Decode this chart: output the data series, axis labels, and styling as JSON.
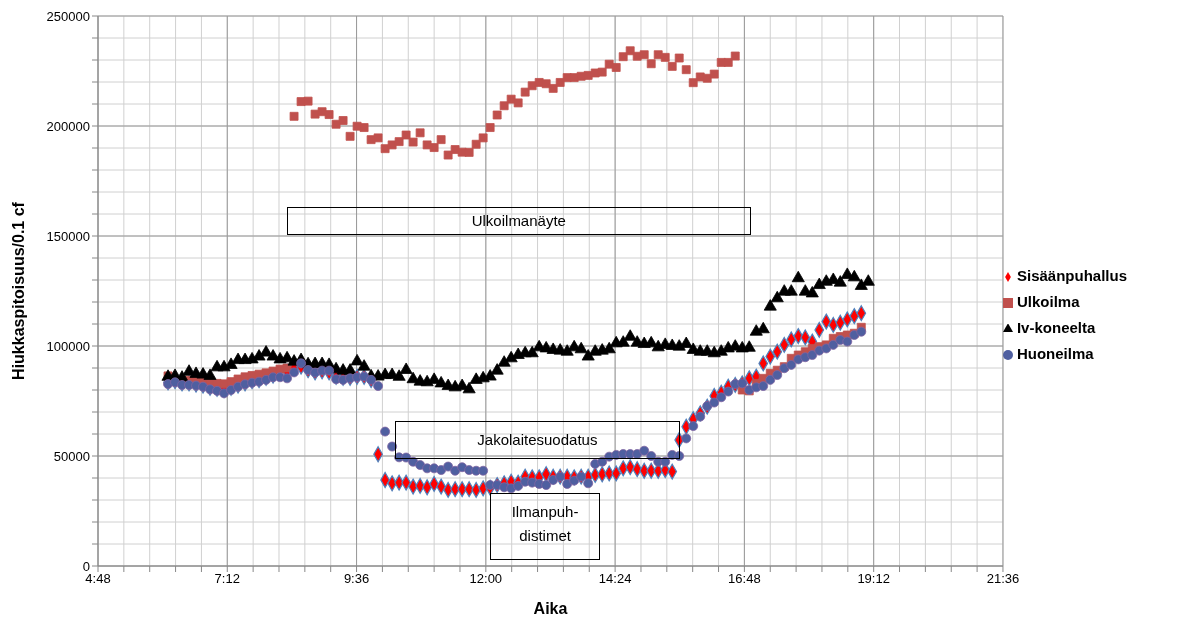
{
  "chart_data": {
    "type": "scatter",
    "xlabel": "Aika",
    "ylabel": "Hiukkaspitoisuus/0.1 cf",
    "xlim": [
      4.8,
      21.6
    ],
    "xticks": [
      {
        "value": 4.8,
        "label": "4:48"
      },
      {
        "value": 5.28,
        "label": null
      },
      {
        "value": 5.76,
        "label": null
      },
      {
        "value": 6.24,
        "label": null
      },
      {
        "value": 6.72,
        "label": null
      },
      {
        "value": 7.2,
        "label": "7:12"
      },
      {
        "value": 7.68,
        "label": null
      },
      {
        "value": 8.16,
        "label": null
      },
      {
        "value": 8.64,
        "label": null
      },
      {
        "value": 9.12,
        "label": null
      },
      {
        "value": 9.6,
        "label": "9:36"
      },
      {
        "value": 10.08,
        "label": null
      },
      {
        "value": 10.56,
        "label": null
      },
      {
        "value": 11.04,
        "label": null
      },
      {
        "value": 11.52,
        "label": null
      },
      {
        "value": 12,
        "label": "12:00"
      },
      {
        "value": 12.48,
        "label": null
      },
      {
        "value": 12.96,
        "label": null
      },
      {
        "value": 13.44,
        "label": null
      },
      {
        "value": 13.92,
        "label": null
      },
      {
        "value": 14.4,
        "label": "14:24"
      },
      {
        "value": 14.88,
        "label": null
      },
      {
        "value": 15.36,
        "label": null
      },
      {
        "value": 15.84,
        "label": null
      },
      {
        "value": 16.32,
        "label": null
      },
      {
        "value": 16.8,
        "label": "16:48"
      },
      {
        "value": 17.28,
        "label": null
      },
      {
        "value": 17.76,
        "label": null
      },
      {
        "value": 18.24,
        "label": null
      },
      {
        "value": 18.72,
        "label": null
      },
      {
        "value": 19.2,
        "label": "19:12"
      },
      {
        "value": 19.68,
        "label": null
      },
      {
        "value": 20.16,
        "label": null
      },
      {
        "value": 20.64,
        "label": null
      },
      {
        "value": 21.12,
        "label": null
      },
      {
        "value": 21.6,
        "label": "21:36"
      }
    ],
    "ylim": [
      0,
      250000
    ],
    "yticks": [
      0,
      {
        "value": 10000,
        "label": null
      },
      {
        "value": 20000,
        "label": null
      },
      {
        "value": 30000,
        "label": null
      },
      {
        "value": 40000,
        "label": null
      },
      50000,
      {
        "value": 60000,
        "label": null
      },
      {
        "value": 70000,
        "label": null
      },
      {
        "value": 80000,
        "label": null
      },
      {
        "value": 90000,
        "label": null
      },
      100000,
      {
        "value": 110000,
        "label": null
      },
      {
        "value": 120000,
        "label": null
      },
      {
        "value": 130000,
        "label": null
      },
      {
        "value": 140000,
        "label": null
      },
      150000,
      {
        "value": 160000,
        "label": null
      },
      {
        "value": 170000,
        "label": null
      },
      {
        "value": 180000,
        "label": null
      },
      {
        "value": 190000,
        "label": null
      },
      200000,
      {
        "value": 210000,
        "label": null
      },
      {
        "value": 220000,
        "label": null
      },
      {
        "value": 230000,
        "label": null
      },
      {
        "value": 240000,
        "label": null
      },
      250000
    ],
    "grid": true,
    "legend": "right",
    "x": [
      6.1,
      6.23,
      6.36,
      6.49,
      6.62,
      6.75,
      6.88,
      7.01,
      7.14,
      7.27,
      7.4,
      7.53,
      7.66,
      7.79,
      7.92,
      8.05,
      8.18,
      8.31,
      8.44,
      8.57,
      8.7,
      8.83,
      8.96,
      9.09,
      9.22,
      9.35,
      9.48,
      9.61,
      9.74,
      9.87,
      10,
      10.13,
      10.26,
      10.39,
      10.52,
      10.65,
      10.78,
      10.91,
      11.04,
      11.17,
      11.3,
      11.43,
      11.56,
      11.69,
      11.82,
      11.95,
      12.08,
      12.21,
      12.34,
      12.47,
      12.6,
      12.73,
      12.86,
      12.99,
      13.12,
      13.25,
      13.38,
      13.51,
      13.64,
      13.77,
      13.9,
      14.03,
      14.16,
      14.29,
      14.42,
      14.55,
      14.68,
      14.81,
      14.94,
      15.07,
      15.2,
      15.33,
      15.46,
      15.59,
      15.72,
      15.85,
      15.98,
      16.11,
      16.24,
      16.37,
      16.5,
      16.63,
      16.76,
      16.89,
      17.02,
      17.15,
      17.28,
      17.41,
      17.54,
      17.67,
      17.8,
      17.93,
      18.06,
      18.19,
      18.32,
      18.45,
      18.58,
      18.71,
      18.84,
      18.97,
      19.1
    ],
    "series": [
      {
        "name": "Sisäänpuhallus",
        "color": "#ff0000",
        "marker": "diamond",
        "values": [
          83500,
          84000,
          83000,
          83000,
          82500,
          82000,
          81000,
          80500,
          80000,
          81000,
          82000,
          83000,
          84000,
          84500,
          85500,
          86500,
          null,
          88500,
          90300,
          90600,
          89000,
          88000,
          88500,
          88000,
          86000,
          85500,
          85500,
          86000,
          86000,
          84500,
          50800,
          39100,
          37600,
          37900,
          37900,
          36100,
          36400,
          35800,
          37300,
          36100,
          34600,
          34900,
          34900,
          34900,
          34600,
          35300,
          35600,
          36800,
          37600,
          38300,
          37900,
          40600,
          40300,
          40300,
          41700,
          40600,
          40600,
          40600,
          40300,
          40600,
          40600,
          41400,
          41700,
          42100,
          42100,
          44400,
          44900,
          44000,
          43300,
          43300,
          43300,
          43600,
          42900,
          57300,
          63300,
          66700,
          69400,
          72400,
          77300,
          78800,
          81500,
          82300,
          83000,
          85300,
          86100,
          92100,
          95200,
          97400,
          100500,
          103000,
          104500,
          103900,
          102000,
          107300,
          111100,
          109600,
          110600,
          112100,
          113600,
          114900,
          null
        ]
      },
      {
        "name": "Ulkoilma",
        "color": "#c0504d",
        "marker": "square",
        "values": [
          86400,
          null,
          null,
          84400,
          84000,
          83600,
          83300,
          83000,
          82800,
          83800,
          85000,
          86000,
          86600,
          87200,
          87800,
          88600,
          89500,
          90000,
          204400,
          211100,
          211300,
          205400,
          206500,
          205200,
          200800,
          202500,
          195300,
          199900,
          199300,
          193800,
          194600,
          189700,
          191400,
          192900,
          195900,
          192700,
          196900,
          191400,
          190200,
          193800,
          186800,
          189300,
          188100,
          188000,
          191700,
          194600,
          199300,
          205000,
          209200,
          212200,
          210500,
          215400,
          218300,
          219800,
          219200,
          217100,
          219800,
          222000,
          222000,
          222600,
          223000,
          224100,
          224500,
          228100,
          226600,
          231500,
          234200,
          231700,
          232400,
          228300,
          232400,
          231200,
          227100,
          230900,
          225600,
          219700,
          222300,
          221700,
          223600,
          228900,
          228900,
          231800,
          80000,
          79600,
          83000,
          85300,
          87600,
          89000,
          90600,
          94400,
          95900,
          97400,
          98900,
          99700,
          100500,
          103500,
          104300,
          105000,
          105800,
          108500,
          null
        ]
      },
      {
        "name": "Iv-koneelta",
        "color": "#000000",
        "marker": "triangle",
        "values": [
          86000,
          86400,
          85600,
          88300,
          87300,
          87000,
          86400,
          90300,
          90300,
          91400,
          93600,
          93600,
          93900,
          95200,
          97000,
          95200,
          93900,
          94400,
          92900,
          93600,
          91700,
          91800,
          91800,
          91400,
          89400,
          88800,
          88800,
          93000,
          90600,
          86200,
          86100,
          86800,
          86800,
          86000,
          89100,
          84900,
          83800,
          83500,
          84600,
          83000,
          81800,
          81200,
          81800,
          80300,
          84600,
          85300,
          86100,
          88800,
          92400,
          94400,
          95900,
          96700,
          96700,
          99400,
          98900,
          98200,
          97900,
          97400,
          99400,
          98500,
          95200,
          97400,
          97900,
          98500,
          101200,
          101500,
          104200,
          101500,
          100900,
          101200,
          99400,
          100500,
          100000,
          99700,
          100900,
          98200,
          97400,
          97400,
          96700,
          97400,
          98900,
          99700,
          98900,
          99200,
          106500,
          107600,
          117900,
          121700,
          124700,
          124700,
          130800,
          124700,
          123900,
          127700,
          129200,
          130000,
          128800,
          132300,
          131200,
          127300,
          129200
        ]
      },
      {
        "name": "Huoneilma",
        "color": "#4f5fa0",
        "marker": "circle",
        "values": [
          82700,
          83500,
          82300,
          82300,
          82000,
          81500,
          80300,
          79600,
          78500,
          80000,
          81500,
          82600,
          83300,
          83800,
          84600,
          85800,
          85800,
          85300,
          88000,
          92100,
          89100,
          87900,
          88800,
          88800,
          84900,
          84600,
          85300,
          85800,
          86100,
          84600,
          81800,
          61100,
          54300,
          49400,
          49300,
          47400,
          45900,
          44400,
          44400,
          43600,
          45200,
          43300,
          44900,
          43600,
          43300,
          43300,
          36800,
          36800,
          35800,
          35300,
          36400,
          38300,
          37900,
          37300,
          36800,
          39100,
          40600,
          37300,
          38800,
          40600,
          37600,
          46400,
          47400,
          49700,
          50500,
          50900,
          50900,
          50900,
          52400,
          50000,
          47400,
          47400,
          50500,
          50000,
          58000,
          63600,
          67900,
          72700,
          74300,
          76700,
          79300,
          82700,
          83000,
          80000,
          81200,
          81800,
          84600,
          86800,
          89900,
          91400,
          93900,
          94900,
          95900,
          97900,
          98900,
          100500,
          102700,
          102000,
          105000,
          106500,
          null
        ]
      }
    ],
    "annotations": [
      "Ulkoilmanäyte",
      "Jakolaitesuodatus",
      "Ilmanpuh-distimet"
    ]
  }
}
